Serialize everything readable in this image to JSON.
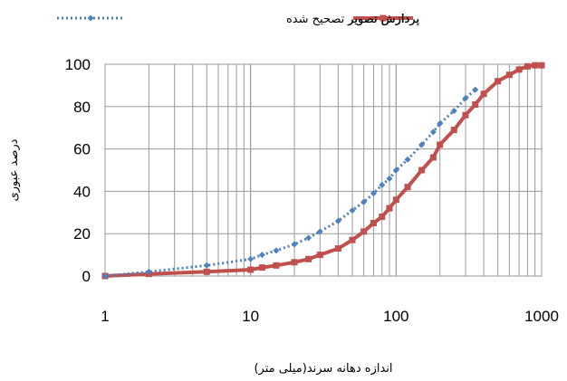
{
  "chart_data": {
    "type": "line",
    "xscale": "log",
    "xlim": [
      1,
      1000
    ],
    "ylim": [
      0,
      100
    ],
    "xticks": [
      1,
      10,
      100,
      1000
    ],
    "yticks": [
      0,
      20,
      40,
      60,
      80,
      100
    ],
    "xlabel": "اندازه دهانه سرند(میلی متر)",
    "ylabel": "درصد عبوری",
    "grid": true,
    "legend_position": "top",
    "series": [
      {
        "name": "پردازش تصویر",
        "color": "#c0504d",
        "style": "solid",
        "marker": "square",
        "x": [
          1,
          2,
          5,
          10,
          12,
          15,
          20,
          25,
          30,
          40,
          50,
          60,
          70,
          80,
          90,
          100,
          120,
          150,
          180,
          200,
          250,
          300,
          350,
          400,
          500,
          600,
          700,
          800,
          900,
          1000
        ],
        "y": [
          0,
          1,
          2,
          3,
          4,
          5,
          6.5,
          8,
          10,
          13,
          17,
          21,
          25,
          28,
          32,
          36,
          42,
          50,
          56,
          62,
          69,
          76,
          81,
          86,
          92,
          95,
          97.5,
          99,
          99.5,
          99.5
        ]
      },
      {
        "name": "پردازش تصویر تصحیح شده",
        "color": "#4f81bd",
        "style": "dotted",
        "marker": "diamond",
        "x": [
          1,
          2,
          5,
          10,
          12,
          15,
          20,
          25,
          30,
          40,
          50,
          60,
          70,
          80,
          90,
          100,
          120,
          150,
          180,
          200,
          250,
          300,
          350
        ],
        "y": [
          0,
          2,
          5,
          8,
          10,
          12,
          15,
          18,
          21,
          26,
          31,
          35,
          39,
          43,
          46,
          50,
          55,
          62,
          68,
          72,
          78,
          84,
          88
        ]
      }
    ]
  }
}
